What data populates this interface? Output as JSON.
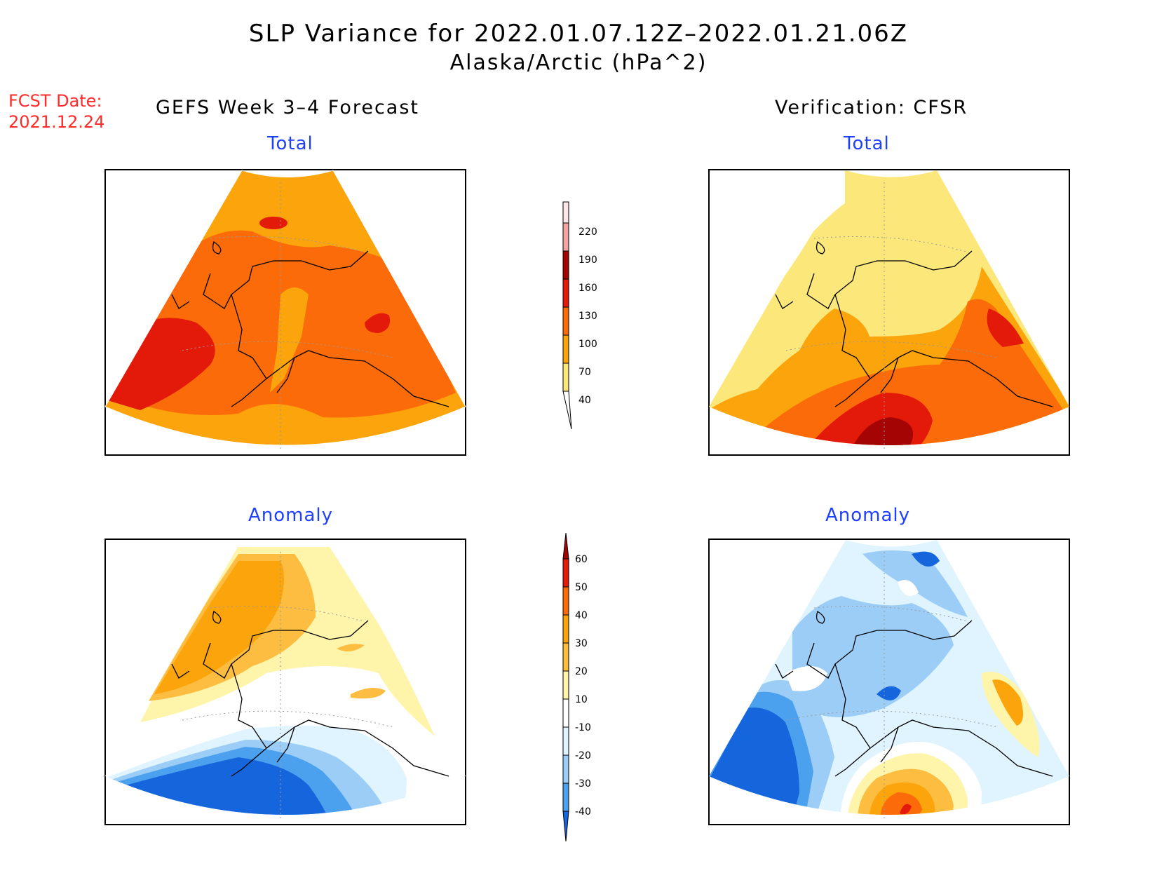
{
  "header": {
    "title": "SLP Variance for 2022.01.07.12Z–2022.01.21.06Z",
    "subtitle": "Alaska/Arctic (hPa^2)"
  },
  "fcst_date": {
    "label": "FCST Date:",
    "value": "2021.12.24"
  },
  "columns": {
    "left_title": "GEFS Week 3–4 Forecast",
    "right_title": "Verification: CFSR"
  },
  "rows": {
    "top_label": "Total",
    "bottom_label": "Anomaly"
  },
  "colors": {
    "total_scale": [
      "#fce77a",
      "#fba40b",
      "#fb6b0a",
      "#e31a0a",
      "#a40404",
      "#f5a4a4",
      "#fce6e6"
    ],
    "anom_scale": [
      "#1565dc",
      "#4ba1ee",
      "#9bcdf7",
      "#dff4ff",
      "#ffffff",
      "#fef4aa",
      "#fdbd40",
      "#fba40b",
      "#fb6b0a",
      "#e31a0a",
      "#a40404"
    ]
  },
  "chart_data": [
    {
      "type": "heatmap",
      "title": "Total",
      "panel": "GEFS Week 3–4 Forecast",
      "dominant_range": [
        100,
        130
      ],
      "regions": [
        {
          "description_value_range": [
            70,
            100
          ],
          "where": "north and south rim"
        },
        {
          "description_value_range": [
            100,
            130
          ],
          "where": "interior"
        },
        {
          "description_value_range": [
            130,
            160
          ],
          "where": "far west, small spot east"
        }
      ]
    },
    {
      "type": "heatmap",
      "title": "Total",
      "panel": "Verification: CFSR",
      "dominant_range": [
        40,
        70
      ],
      "regions": [
        {
          "description_value_range": [
            40,
            70
          ],
          "where": "north and west"
        },
        {
          "description_value_range": [
            70,
            100
          ],
          "where": "middle band"
        },
        {
          "description_value_range": [
            100,
            130
          ],
          "where": "east and south"
        },
        {
          "description_value_range": [
            130,
            160
          ],
          "where": "south-central"
        },
        {
          "description_value_range": [
            160,
            190
          ],
          "where": "south-central core"
        }
      ]
    },
    {
      "type": "heatmap",
      "title": "Anomaly",
      "panel": "GEFS Week 3–4 Forecast",
      "regions": [
        {
          "description_value_range": [
            20,
            40
          ],
          "where": "north-west"
        },
        {
          "description_value_range": [
            10,
            20
          ],
          "where": "north-east"
        },
        {
          "description_value_range": [
            -10,
            10
          ],
          "where": "middle band"
        },
        {
          "description_value_range": [
            -40,
            -20
          ],
          "where": "south"
        }
      ]
    },
    {
      "type": "heatmap",
      "title": "Anomaly",
      "panel": "Verification: CFSR",
      "regions": [
        {
          "description_value_range": [
            -30,
            -10
          ],
          "where": "north"
        },
        {
          "description_value_range": [
            -40,
            -30
          ],
          "where": "south-west"
        },
        {
          "description_value_range": [
            20,
            50
          ],
          "where": "south-central"
        },
        {
          "description_value_range": [
            10,
            30
          ],
          "where": "east"
        }
      ]
    }
  ],
  "colorbars": {
    "total": {
      "ticks": [
        "40",
        "70",
        "100",
        "130",
        "160",
        "190",
        "220"
      ]
    },
    "anomaly": {
      "ticks": [
        "-40",
        "-30",
        "-20",
        "-10",
        "10",
        "20",
        "30",
        "40",
        "50",
        "60"
      ]
    }
  }
}
